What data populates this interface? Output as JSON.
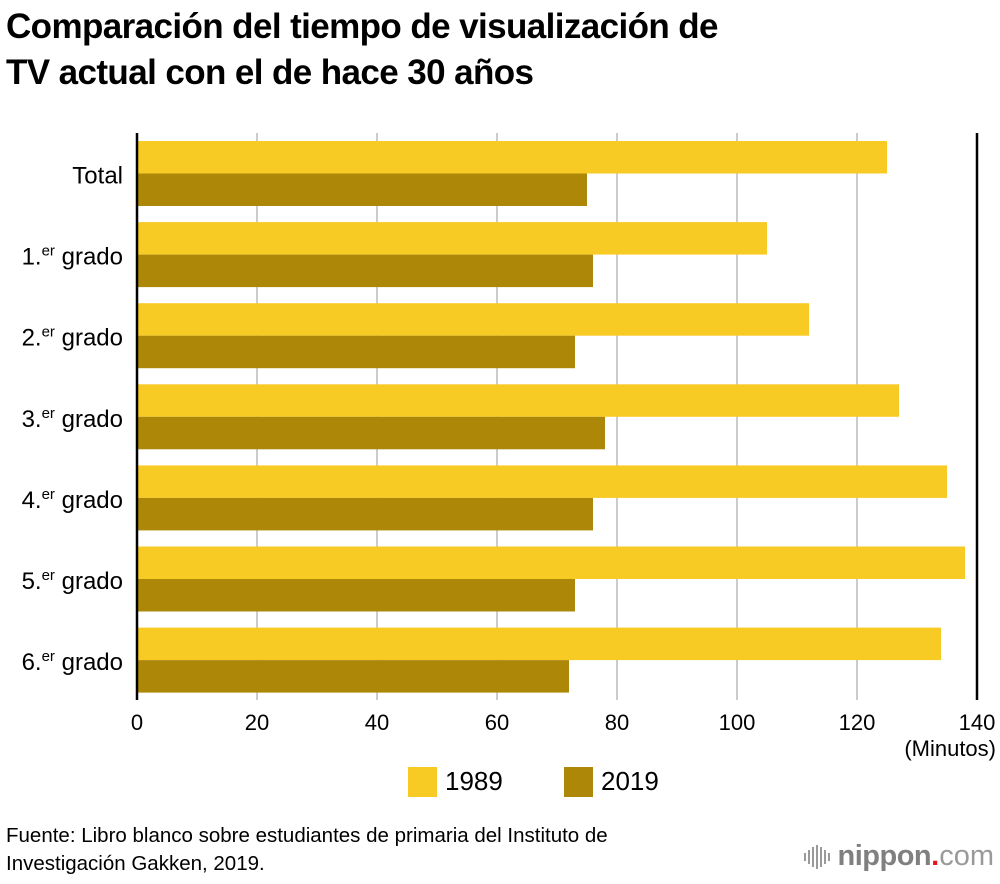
{
  "header": {
    "title_lines": [
      "Comparación del tiempo de visualización de",
      "TV actual con el de hace 30 años"
    ]
  },
  "chart_data": {
    "type": "bar",
    "orientation": "horizontal",
    "title": "Comparación del tiempo de visualización de TV actual con el de hace 30 años",
    "categories": [
      {
        "main": "Total",
        "sup": "",
        "suffix": ""
      },
      {
        "main": "1.",
        "sup": "er",
        "suffix": " grado"
      },
      {
        "main": "2.",
        "sup": "er",
        "suffix": " grado"
      },
      {
        "main": "3.",
        "sup": "er",
        "suffix": " grado"
      },
      {
        "main": "4.",
        "sup": "er",
        "suffix": " grado"
      },
      {
        "main": "5.",
        "sup": "er",
        "suffix": " grado"
      },
      {
        "main": "6.",
        "sup": "er",
        "suffix": " grado"
      }
    ],
    "category_labels": [
      "Total",
      "1.er grado",
      "2.er grado",
      "3.er grado",
      "4.er grado",
      "5.er grado",
      "6.er grado"
    ],
    "series": [
      {
        "name": "1989",
        "color": "#f8ca24",
        "values": [
          125,
          105,
          112,
          127,
          135,
          138,
          134
        ]
      },
      {
        "name": "2019",
        "color": "#ad8808",
        "values": [
          75,
          76,
          73,
          78,
          76,
          73,
          72
        ]
      }
    ],
    "xlim": [
      0,
      140
    ],
    "xticks": [
      0,
      20,
      40,
      60,
      80,
      100,
      120,
      140
    ],
    "xlabel": "(Minutos)",
    "ylabel": "",
    "grid": true,
    "legend_position": "bottom-center",
    "colors": {
      "grid": "#cccccc",
      "axis": "#000000"
    }
  },
  "footer": {
    "source_lines": [
      "Fuente: Libro blanco sobre estudiantes de primaria del Instituto de",
      "Investigación Gakken, 2019."
    ],
    "brand": {
      "name": "nippon",
      "dot": ".",
      "tld": "com",
      "accent": "#e5141e"
    }
  }
}
